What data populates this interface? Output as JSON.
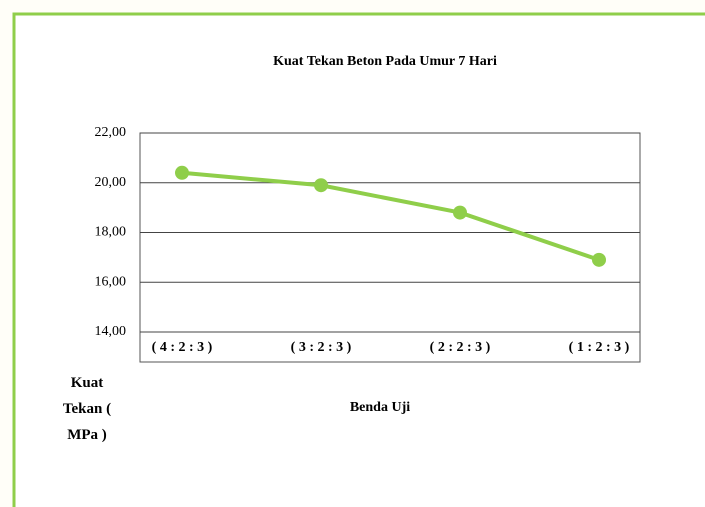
{
  "chart_data": {
    "type": "line",
    "title": "Kuat Tekan Beton Pada Umur 7 Hari",
    "x_label": "Benda Uji",
    "y_label": "Kuat Tekan ( MPa )",
    "categories": [
      "( 4 : 2 : 3 )",
      "( 3 : 2 : 3 )",
      "( 2 : 2 : 3 )",
      "( 1 : 2 : 3 )"
    ],
    "values": [
      20.4,
      19.9,
      18.8,
      16.9
    ],
    "color": "#8fce4a",
    "ylim": [
      14,
      22
    ],
    "yticks": [
      {
        "value": 14,
        "label": "14,00"
      },
      {
        "value": 16,
        "label": "16,00"
      },
      {
        "value": 18,
        "label": "18,00"
      },
      {
        "value": 20,
        "label": "20,00"
      },
      {
        "value": 22,
        "label": "22,00"
      }
    ],
    "grid": true
  }
}
